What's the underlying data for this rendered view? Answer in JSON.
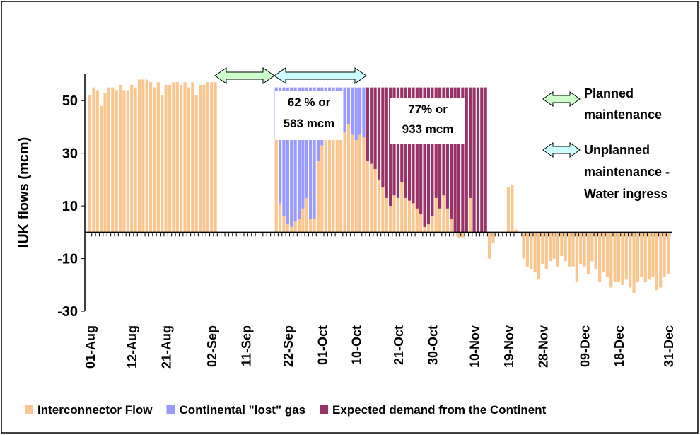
{
  "chart_data": {
    "type": "stacked-bar",
    "y_label": "IUK flows (mcm)",
    "ylim": [
      -30,
      60
    ],
    "yticks": [
      -30,
      -10,
      10,
      30,
      50
    ],
    "categories": [
      "01-Aug",
      null,
      null,
      null,
      null,
      null,
      null,
      null,
      null,
      null,
      null,
      "12-Aug",
      null,
      null,
      null,
      null,
      null,
      null,
      null,
      null,
      "21-Aug",
      null,
      null,
      null,
      null,
      null,
      null,
      null,
      null,
      null,
      null,
      null,
      "02-Sep",
      null,
      null,
      null,
      null,
      null,
      null,
      null,
      null,
      "11-Sep",
      null,
      null,
      null,
      null,
      null,
      null,
      null,
      null,
      null,
      null,
      "22-Sep",
      null,
      null,
      null,
      null,
      null,
      null,
      null,
      null,
      "01-Oct",
      null,
      null,
      null,
      null,
      null,
      null,
      null,
      null,
      "10-Oct",
      null,
      null,
      null,
      null,
      null,
      null,
      null,
      null,
      null,
      null,
      "21-Oct",
      null,
      null,
      null,
      null,
      null,
      null,
      null,
      null,
      "30-Oct",
      null,
      null,
      null,
      null,
      null,
      null,
      null,
      null,
      null,
      null,
      "10-Nov",
      null,
      null,
      null,
      null,
      null,
      null,
      null,
      null,
      "19-Nov",
      null,
      null,
      null,
      null,
      null,
      null,
      null,
      null,
      "28-Nov",
      null,
      null,
      null,
      null,
      null,
      null,
      null,
      null,
      null,
      null,
      "09-Dec",
      null,
      null,
      null,
      null,
      null,
      null,
      null,
      null,
      "18-Dec",
      null,
      null,
      null,
      null,
      null,
      null,
      null,
      null,
      null,
      null,
      null,
      null,
      "31-Dec"
    ],
    "series": [
      {
        "name": "Interconnector Flow",
        "color": "#f9c690",
        "values": [
          52,
          55,
          54,
          48,
          53,
          55,
          55,
          54,
          56,
          54,
          54,
          56,
          55,
          58,
          58,
          58,
          57,
          55,
          57,
          52,
          56,
          56,
          57,
          57,
          56,
          57,
          55,
          57,
          52,
          56,
          56,
          57,
          57,
          57,
          null,
          null,
          null,
          null,
          null,
          null,
          null,
          null,
          null,
          null,
          null,
          null,
          null,
          null,
          null,
          36,
          11,
          6,
          3,
          2,
          4,
          5,
          9,
          13,
          5,
          5,
          27,
          33,
          35,
          36,
          37,
          37,
          37,
          38,
          41,
          37,
          35,
          37,
          36,
          27,
          26,
          24,
          20,
          17,
          13,
          10,
          14,
          13,
          19,
          13,
          12,
          11,
          9,
          7,
          2,
          3,
          6,
          13,
          9,
          14,
          9,
          5,
          0,
          -2,
          -2,
          0,
          13,
          0,
          0,
          0,
          0,
          -10,
          -4,
          0,
          0,
          0,
          17,
          18,
          1,
          0,
          -10,
          -13,
          -14,
          -15,
          -18,
          -12,
          -14,
          -11,
          -10,
          -13,
          -9,
          -11,
          -13,
          -13,
          -19,
          -12,
          -13,
          -16,
          -11,
          -14,
          -19,
          -15,
          -17,
          -21,
          -19,
          -19,
          -20,
          -18,
          -21,
          -23,
          -19,
          -17,
          -19,
          -18,
          -17,
          -22,
          -21,
          -17,
          -16
        ]
      },
      {
        "name": "Continental \"lost\" gas",
        "color": "#9999ff",
        "values": [
          null,
          null,
          null,
          null,
          null,
          null,
          null,
          null,
          null,
          null,
          null,
          null,
          null,
          null,
          null,
          null,
          null,
          null,
          null,
          null,
          null,
          null,
          null,
          null,
          null,
          null,
          null,
          null,
          null,
          null,
          null,
          null,
          null,
          null,
          null,
          null,
          null,
          null,
          null,
          null,
          null,
          null,
          null,
          null,
          null,
          null,
          null,
          null,
          null,
          19,
          44,
          49,
          52,
          53,
          51,
          50,
          46,
          42,
          50,
          50,
          28,
          22,
          20,
          19,
          18,
          18,
          18,
          17,
          14,
          18,
          20,
          18,
          19,
          null,
          null,
          null,
          null,
          null,
          null,
          null,
          null,
          null,
          null,
          null,
          null,
          null,
          null,
          null,
          null,
          null,
          null,
          null,
          null,
          null,
          null,
          null,
          null,
          null,
          null,
          null,
          null,
          null,
          null,
          null,
          null,
          null,
          null,
          null,
          null,
          null,
          null,
          null,
          null,
          null,
          null,
          null,
          null,
          null,
          null,
          null,
          null,
          null,
          null,
          null,
          null,
          null,
          null,
          null,
          null,
          null,
          null,
          null,
          null,
          null,
          null,
          null,
          null,
          null,
          null,
          null,
          null,
          null,
          null,
          null,
          null,
          null,
          null,
          null,
          null,
          null,
          null,
          null,
          null
        ]
      },
      {
        "name": "Expected demand from the Continent",
        "color": "#993366",
        "values": [
          null,
          null,
          null,
          null,
          null,
          null,
          null,
          null,
          null,
          null,
          null,
          null,
          null,
          null,
          null,
          null,
          null,
          null,
          null,
          null,
          null,
          null,
          null,
          null,
          null,
          null,
          null,
          null,
          null,
          null,
          null,
          null,
          null,
          null,
          null,
          null,
          null,
          null,
          null,
          null,
          null,
          null,
          null,
          null,
          null,
          null,
          null,
          null,
          null,
          null,
          null,
          null,
          null,
          null,
          null,
          null,
          null,
          null,
          null,
          null,
          null,
          null,
          null,
          null,
          null,
          null,
          null,
          null,
          null,
          null,
          null,
          null,
          null,
          28,
          29,
          31,
          35,
          38,
          42,
          45,
          41,
          42,
          36,
          42,
          43,
          44,
          46,
          48,
          53,
          52,
          49,
          42,
          46,
          41,
          46,
          50,
          55,
          55,
          55,
          55,
          42,
          55,
          55,
          55,
          55,
          null,
          null,
          null,
          null,
          null,
          null,
          null,
          null,
          null,
          null,
          null,
          null,
          null,
          null,
          null,
          null,
          null,
          null,
          null,
          null,
          null,
          null,
          null,
          null,
          null,
          null,
          null,
          null,
          null,
          null,
          null,
          null,
          null,
          null,
          null,
          null,
          null,
          null,
          null,
          null,
          null,
          null,
          null,
          null,
          null,
          null,
          null,
          null
        ]
      }
    ],
    "annotations": {
      "lost_box": [
        "62 % or",
        "583 mcm"
      ],
      "demand_box": [
        "77% or",
        "933 mcm"
      ],
      "planned": [
        "Planned",
        "maintenance"
      ],
      "unplanned": [
        "Unplanned",
        "maintenance -",
        "Water ingress"
      ]
    }
  }
}
